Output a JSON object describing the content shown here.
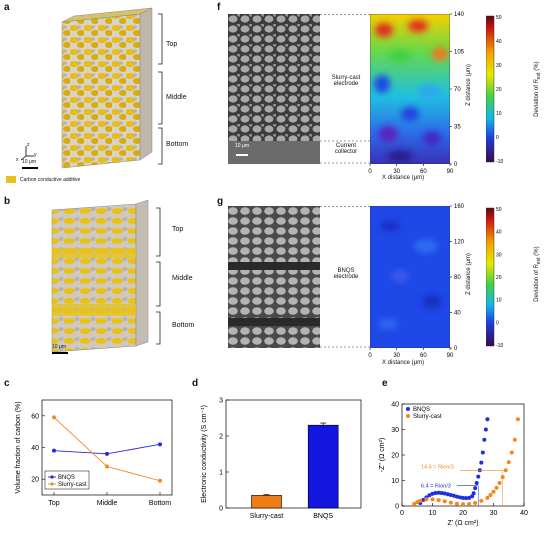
{
  "panel_letters": {
    "a": "a",
    "b": "b",
    "c": "c",
    "d": "d",
    "e": "e",
    "f": "f",
    "g": "g"
  },
  "panel_a": {
    "regions": [
      "Top",
      "Middle",
      "Bottom"
    ],
    "scale_bar": "10 μm",
    "axes_glyph": {
      "z": "z",
      "y": "y",
      "x": "x"
    },
    "legend": "Carbon conductive additive",
    "colors": {
      "carbon": "#e8c21a",
      "matrix": "#c9c2b8"
    }
  },
  "panel_b": {
    "regions": [
      "Top",
      "Middle",
      "Bottom"
    ],
    "scale_bar": "10 μm"
  },
  "panel_f": {
    "electrode_label_1": "Slurry-cast",
    "electrode_label_2": "electrode",
    "collector_label_1": "Current",
    "collector_label_2": "collector",
    "scale_bar": "10 μm",
    "xlabel": "X distance (μm)",
    "ylabel": "Z distance (μm)",
    "x_ticks": [
      "0",
      "30",
      "60",
      "90"
    ],
    "y_ticks": [
      "0",
      "35",
      "70",
      "105",
      "140"
    ],
    "colorbar_label_main": "Deviation of R",
    "colorbar_label_sub": "ext",
    "colorbar_label_unit": " (%)",
    "colorbar_ticks": [
      "50",
      "40",
      "30",
      "20",
      "10",
      "0",
      "-10"
    ]
  },
  "panel_g": {
    "electrode_label_1": "BNQS",
    "electrode_label_2": "electrode",
    "xlabel": "X distance (μm)",
    "y_ticks": [
      "0",
      "40",
      "80",
      "120",
      "160"
    ],
    "x_ticks": [
      "0",
      "30",
      "60",
      "90"
    ],
    "ylabel": "Z distance (μm)",
    "colorbar_label_main": "Deviation of R",
    "colorbar_label_sub": "ext",
    "colorbar_label_unit": " (%)",
    "colorbar_ticks": [
      "50",
      "40",
      "30",
      "20",
      "10",
      "0",
      "-10"
    ]
  },
  "chart_data": [
    {
      "id": "c",
      "type": "line",
      "categories": [
        "Top",
        "Middle",
        "Bottom"
      ],
      "series": [
        {
          "name": "BNQS",
          "color": "#2a2ad6",
          "values": [
            38,
            36,
            42
          ]
        },
        {
          "name": "Slurry-cast",
          "color": "#f08a24",
          "values": [
            59,
            28,
            19
          ]
        }
      ],
      "xlabel": "",
      "ylabel": "Volume fraction of carbon (%)",
      "ylim": [
        10,
        70
      ],
      "yticks": [
        20,
        40,
        60
      ],
      "legend_position": "bottom-left"
    },
    {
      "id": "d",
      "type": "bar",
      "categories": [
        "Slurry-cast",
        "BNQS"
      ],
      "values": [
        0.35,
        2.3
      ],
      "errors": [
        0.02,
        0.06
      ],
      "colors": [
        "#f07d14",
        "#1515e0"
      ],
      "xlabel": "",
      "ylabel": "Electronic conductivity (S cm⁻¹)",
      "ylim": [
        0,
        3
      ],
      "yticks": [
        0,
        1,
        2,
        3
      ]
    },
    {
      "id": "e",
      "type": "scatter",
      "series": [
        {
          "name": "BNQS",
          "color": "#1f2fe0",
          "x": [
            6,
            7,
            8,
            9,
            10,
            11,
            12,
            13,
            14,
            15,
            16,
            17,
            18,
            19,
            20,
            21,
            22,
            23,
            23.5,
            24,
            24.5,
            25,
            25.5,
            26,
            26.5,
            27,
            27.5,
            28
          ],
          "y": [
            1.2,
            2.4,
            3.4,
            4.2,
            4.8,
            5.1,
            5.2,
            5.1,
            4.9,
            4.6,
            4.3,
            4.0,
            3.7,
            3.4,
            3.2,
            3.1,
            3.2,
            3.8,
            5,
            7,
            9,
            11.5,
            14,
            17,
            21,
            26,
            30,
            34
          ]
        },
        {
          "name": "Slurry-cast",
          "color": "#f5861d",
          "x": [
            4,
            5,
            6,
            8,
            10,
            12,
            14,
            16,
            18,
            20,
            22,
            24,
            26,
            28,
            29,
            30,
            31,
            32,
            33,
            34,
            35,
            36,
            37,
            38
          ],
          "y": [
            0.8,
            1.5,
            2.0,
            2.6,
            2.6,
            2.3,
            1.8,
            1.3,
            0.9,
            0.7,
            0.8,
            1.2,
            2.0,
            3.2,
            4.3,
            5.6,
            7.1,
            9.0,
            11.3,
            14.0,
            17.2,
            21,
            26,
            34
          ]
        }
      ],
      "annotations": [
        {
          "text": "14.6 = R",
          "sub": "ion",
          "tail": "/3"
        },
        {
          "text": "6.4 = R",
          "sub": "ion",
          "tail": "/3"
        }
      ],
      "xlabel": "Z' (Ω cm²)",
      "ylabel": "-Z\" (Ω cm²)",
      "xlim": [
        0,
        40
      ],
      "ylim": [
        0,
        40
      ],
      "xticks": [
        0,
        10,
        20,
        30,
        40
      ],
      "yticks": [
        0,
        10,
        20,
        30,
        40
      ],
      "legend_position": "top-left"
    }
  ]
}
